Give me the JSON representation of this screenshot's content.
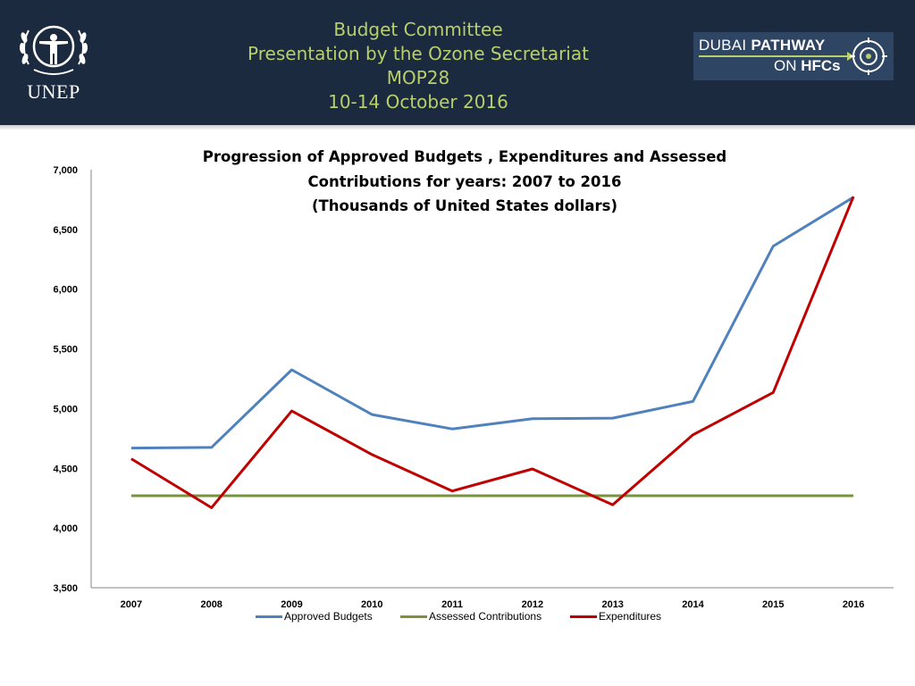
{
  "header": {
    "title_lines": [
      "Budget Committee",
      "Presentation by the Ozone Secretariat",
      "MOP28",
      "10-14 October 2016"
    ],
    "unep_text": "UNEP",
    "dubai_logo": {
      "word1": "DUBAI",
      "word2": "PATHWAY",
      "word3": "ON",
      "word4": "HFCs"
    },
    "colors": {
      "background": "#1b2a3e",
      "title": "#b8cf6c"
    }
  },
  "chart_data": {
    "type": "line",
    "title_lines": [
      "Progression of Approved Budgets , Expenditures and  Assessed",
      "Contributions for years: 2007 to 2016",
      "(Thousands of United States dollars)"
    ],
    "categories": [
      "2007",
      "2008",
      "2009",
      "2010",
      "2011",
      "2012",
      "2013",
      "2014",
      "2015",
      "2016"
    ],
    "ylim": [
      3500,
      7000
    ],
    "yticks": [
      3500,
      4000,
      4500,
      5000,
      5500,
      6000,
      6500,
      7000
    ],
    "ytick_labels": [
      "3,500",
      "4,000",
      "4,500",
      "5,000",
      "5,500",
      "6,000",
      "6,500",
      "7,000"
    ],
    "series": [
      {
        "name": "Approved Budgets",
        "color": "#4f81bd",
        "values": [
          4670,
          4675,
          5325,
          4950,
          4830,
          4915,
          4920,
          5060,
          6360,
          6770
        ]
      },
      {
        "name": "Assessed Contributions",
        "color": "#77933c",
        "values": [
          4270,
          4270,
          4270,
          4270,
          4270,
          4270,
          4270,
          4270,
          4270,
          4270
        ]
      },
      {
        "name": "Expenditures",
        "color": "#c00000",
        "values": [
          4580,
          4170,
          4980,
          4615,
          4310,
          4495,
          4195,
          4780,
          5135,
          6775
        ]
      }
    ],
    "legend_position": "bottom"
  }
}
